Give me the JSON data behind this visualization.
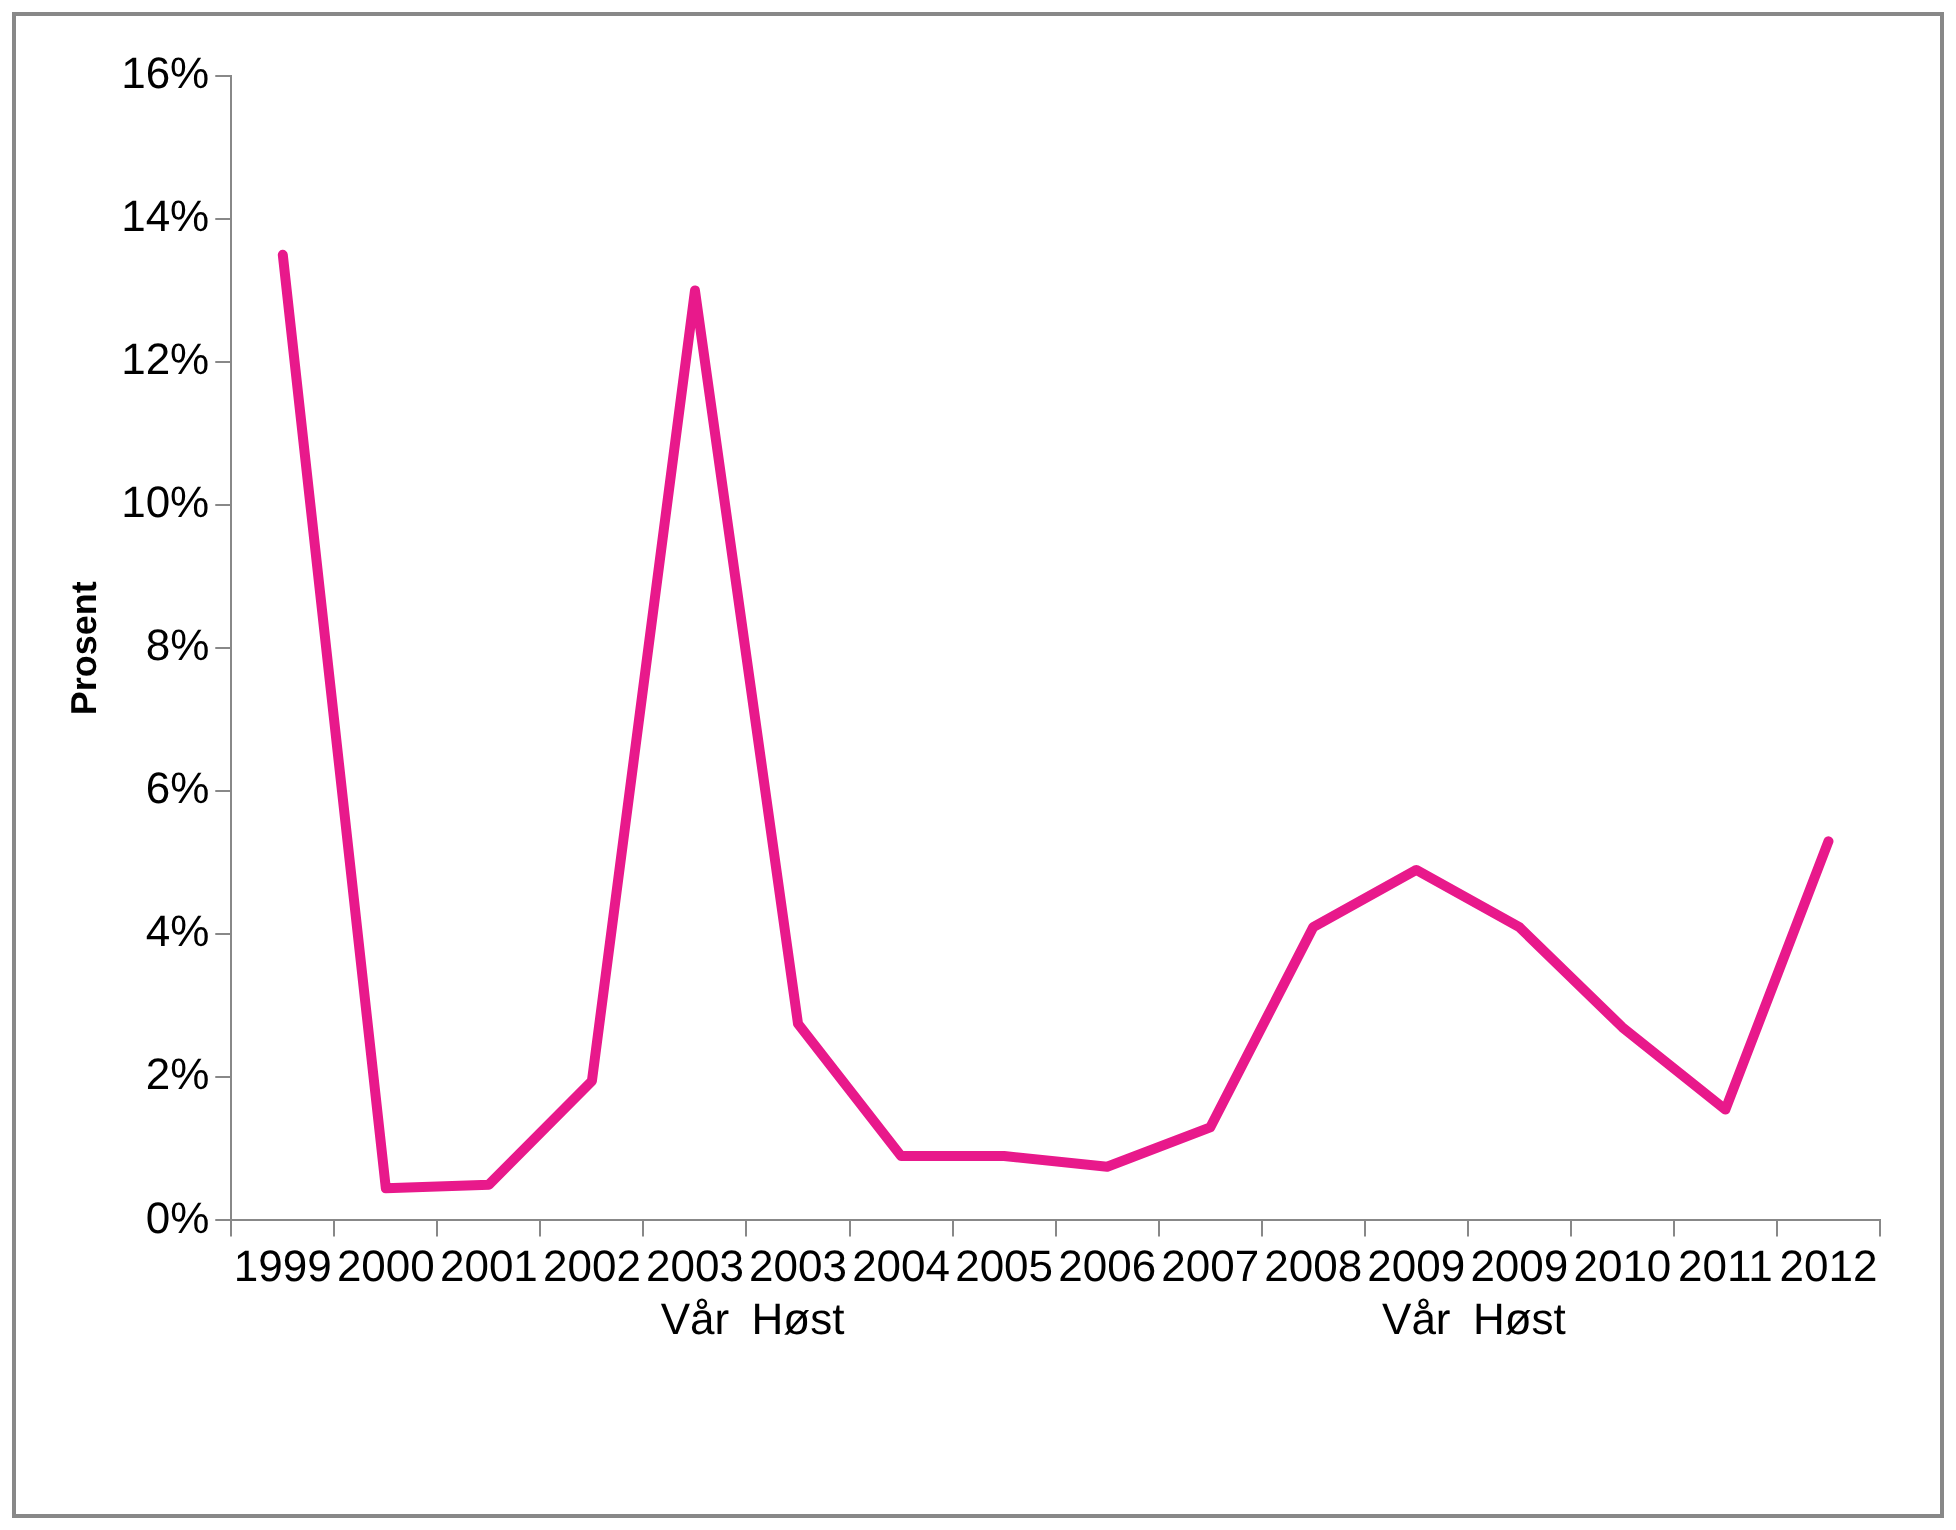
{
  "chart_data": {
    "type": "line",
    "ylabel": "Prosent",
    "categories": [
      "1999",
      "2000",
      "2001",
      "2002",
      "2003\nVår",
      "2003\nHøst",
      "2004",
      "2005",
      "2006",
      "2007",
      "2008",
      "2009\nVår",
      "2009\nHøst",
      "2010",
      "2011",
      "2012"
    ],
    "series": [
      {
        "color": "#e8198b",
        "values": [
          13.5,
          0.45,
          0.5,
          1.95,
          13.0,
          2.75,
          0.9,
          0.9,
          0.75,
          1.3,
          4.1,
          4.9,
          4.1,
          2.7,
          1.55,
          5.3
        ]
      }
    ],
    "ylim": [
      0,
      16
    ],
    "yticks": [
      {
        "value": 0,
        "label": "0%"
      },
      {
        "value": 2,
        "label": "2%"
      },
      {
        "value": 4,
        "label": "4%"
      },
      {
        "value": 6,
        "label": "6%"
      },
      {
        "value": 8,
        "label": "8%"
      },
      {
        "value": 10,
        "label": "10%"
      },
      {
        "value": 12,
        "label": "12%"
      },
      {
        "value": 14,
        "label": "14%"
      },
      {
        "value": 16,
        "label": "16%"
      }
    ],
    "grid": false,
    "legend": false,
    "marker": "none",
    "line_style": "solid"
  }
}
